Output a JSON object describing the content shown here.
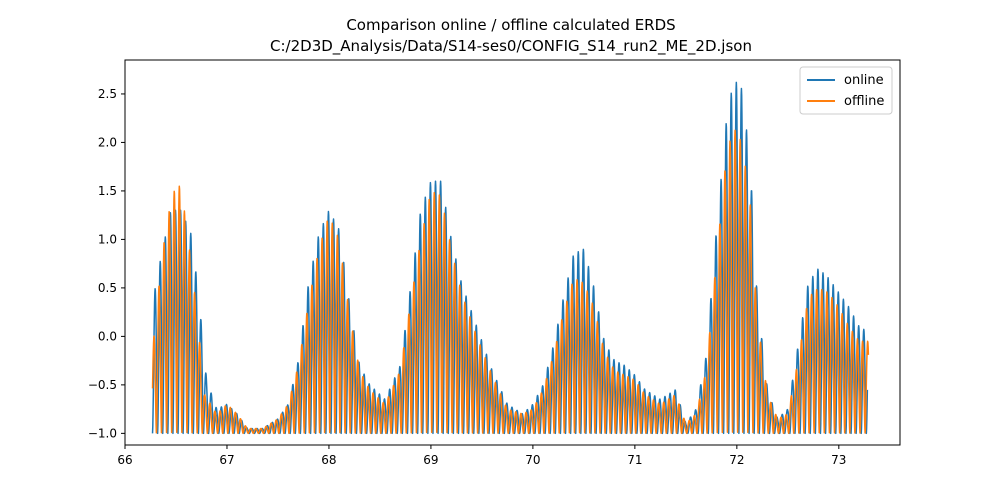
{
  "chart_data": {
    "type": "line",
    "title": "Comparison online / offline calculated ERDS",
    "subtitle": "C:/2D3D_Analysis/Data/S14-ses0/CONFIG_S14_run2_ME_2D.json",
    "xlabel": "",
    "ylabel": "",
    "xlim": [
      66.0,
      73.6
    ],
    "ylim": [
      -1.12,
      2.85
    ],
    "xticks": [
      66,
      67,
      68,
      69,
      70,
      71,
      72,
      73
    ],
    "yticks": [
      -1.0,
      -0.5,
      0.0,
      0.5,
      1.0,
      1.5,
      2.0,
      2.5
    ],
    "ytick_labels": [
      "−1.0",
      "−0.5",
      "0.0",
      "0.5",
      "1.0",
      "1.5",
      "2.0",
      "2.5"
    ],
    "grid": false,
    "legend_position": "top-right",
    "oscillation_period": 0.05,
    "series": [
      {
        "name": "online",
        "color": "#1f77b4",
        "x_start": 66.27,
        "x_end": 73.28,
        "envelope": [
          [
            66.27,
            0.35
          ],
          [
            66.35,
            0.8
          ],
          [
            66.45,
            1.3
          ],
          [
            66.55,
            1.3
          ],
          [
            66.65,
            1.05
          ],
          [
            66.72,
            0.45
          ],
          [
            66.8,
            -0.45
          ],
          [
            66.9,
            -0.75
          ],
          [
            67.0,
            -0.7
          ],
          [
            67.1,
            -0.8
          ],
          [
            67.2,
            -0.95
          ],
          [
            67.35,
            -0.95
          ],
          [
            67.5,
            -0.85
          ],
          [
            67.6,
            -0.7
          ],
          [
            67.7,
            -0.25
          ],
          [
            67.8,
            0.55
          ],
          [
            67.9,
            1.05
          ],
          [
            68.0,
            1.3
          ],
          [
            68.1,
            1.1
          ],
          [
            68.2,
            0.35
          ],
          [
            68.3,
            -0.3
          ],
          [
            68.4,
            -0.5
          ],
          [
            68.55,
            -0.65
          ],
          [
            68.7,
            -0.3
          ],
          [
            68.8,
            0.5
          ],
          [
            68.9,
            1.3
          ],
          [
            69.0,
            1.6
          ],
          [
            69.1,
            1.6
          ],
          [
            69.2,
            1.0
          ],
          [
            69.3,
            0.55
          ],
          [
            69.45,
            0.1
          ],
          [
            69.6,
            -0.35
          ],
          [
            69.75,
            -0.7
          ],
          [
            69.9,
            -0.8
          ],
          [
            70.0,
            -0.7
          ],
          [
            70.1,
            -0.5
          ],
          [
            70.2,
            -0.1
          ],
          [
            70.3,
            0.4
          ],
          [
            70.4,
            0.85
          ],
          [
            70.5,
            0.9
          ],
          [
            70.6,
            0.5
          ],
          [
            70.7,
            -0.05
          ],
          [
            70.8,
            -0.25
          ],
          [
            70.9,
            -0.3
          ],
          [
            71.0,
            -0.4
          ],
          [
            71.1,
            -0.55
          ],
          [
            71.25,
            -0.65
          ],
          [
            71.4,
            -0.55
          ],
          [
            71.5,
            -0.9
          ],
          [
            71.6,
            -0.75
          ],
          [
            71.7,
            -0.2
          ],
          [
            71.8,
            1.1
          ],
          [
            71.9,
            2.25
          ],
          [
            71.97,
            2.65
          ],
          [
            72.05,
            2.55
          ],
          [
            72.13,
            1.8
          ],
          [
            72.2,
            0.4
          ],
          [
            72.3,
            -0.55
          ],
          [
            72.4,
            -0.85
          ],
          [
            72.5,
            -0.75
          ],
          [
            72.6,
            -0.1
          ],
          [
            72.7,
            0.55
          ],
          [
            72.8,
            0.7
          ],
          [
            72.9,
            0.6
          ],
          [
            73.0,
            0.45
          ],
          [
            73.1,
            0.3
          ],
          [
            73.2,
            0.1
          ],
          [
            73.28,
            0.05
          ]
        ]
      },
      {
        "name": "offline",
        "color": "#ff7f0e",
        "x_start": 66.27,
        "x_end": 73.29,
        "envelope": [
          [
            66.27,
            -0.15
          ],
          [
            66.32,
            0.4
          ],
          [
            66.38,
            0.95
          ],
          [
            66.45,
            1.4
          ],
          [
            66.5,
            1.55
          ],
          [
            66.55,
            1.55
          ],
          [
            66.62,
            1.0
          ],
          [
            66.7,
            0.3
          ],
          [
            66.78,
            -0.6
          ],
          [
            66.9,
            -0.8
          ],
          [
            67.0,
            -0.7
          ],
          [
            67.1,
            -0.8
          ],
          [
            67.2,
            -0.95
          ],
          [
            67.35,
            -0.95
          ],
          [
            67.5,
            -0.85
          ],
          [
            67.6,
            -0.7
          ],
          [
            67.7,
            -0.3
          ],
          [
            67.8,
            0.35
          ],
          [
            67.9,
            0.9
          ],
          [
            68.0,
            1.25
          ],
          [
            68.1,
            1.0
          ],
          [
            68.2,
            0.25
          ],
          [
            68.3,
            -0.35
          ],
          [
            68.4,
            -0.55
          ],
          [
            68.55,
            -0.7
          ],
          [
            68.7,
            -0.35
          ],
          [
            68.8,
            0.35
          ],
          [
            68.9,
            1.0
          ],
          [
            69.0,
            1.5
          ],
          [
            69.1,
            1.45
          ],
          [
            69.2,
            0.9
          ],
          [
            69.3,
            0.45
          ],
          [
            69.45,
            0.0
          ],
          [
            69.6,
            -0.4
          ],
          [
            69.75,
            -0.75
          ],
          [
            69.9,
            -0.8
          ],
          [
            70.0,
            -0.75
          ],
          [
            70.1,
            -0.55
          ],
          [
            70.2,
            -0.2
          ],
          [
            70.3,
            0.25
          ],
          [
            70.4,
            0.6
          ],
          [
            70.5,
            0.55
          ],
          [
            70.6,
            0.3
          ],
          [
            70.7,
            -0.15
          ],
          [
            70.8,
            -0.35
          ],
          [
            70.9,
            -0.4
          ],
          [
            71.0,
            -0.45
          ],
          [
            71.1,
            -0.6
          ],
          [
            71.25,
            -0.7
          ],
          [
            71.4,
            -0.6
          ],
          [
            71.5,
            -0.9
          ],
          [
            71.6,
            -0.8
          ],
          [
            71.7,
            -0.35
          ],
          [
            71.8,
            0.8
          ],
          [
            71.9,
            1.9
          ],
          [
            71.97,
            2.15
          ],
          [
            72.05,
            2.0
          ],
          [
            72.13,
            1.4
          ],
          [
            72.2,
            0.2
          ],
          [
            72.3,
            -0.6
          ],
          [
            72.4,
            -0.85
          ],
          [
            72.5,
            -0.8
          ],
          [
            72.6,
            -0.25
          ],
          [
            72.7,
            0.4
          ],
          [
            72.8,
            0.5
          ],
          [
            72.9,
            0.45
          ],
          [
            73.0,
            0.3
          ],
          [
            73.1,
            0.1
          ],
          [
            73.2,
            -0.05
          ],
          [
            73.29,
            -0.05
          ]
        ]
      }
    ]
  }
}
